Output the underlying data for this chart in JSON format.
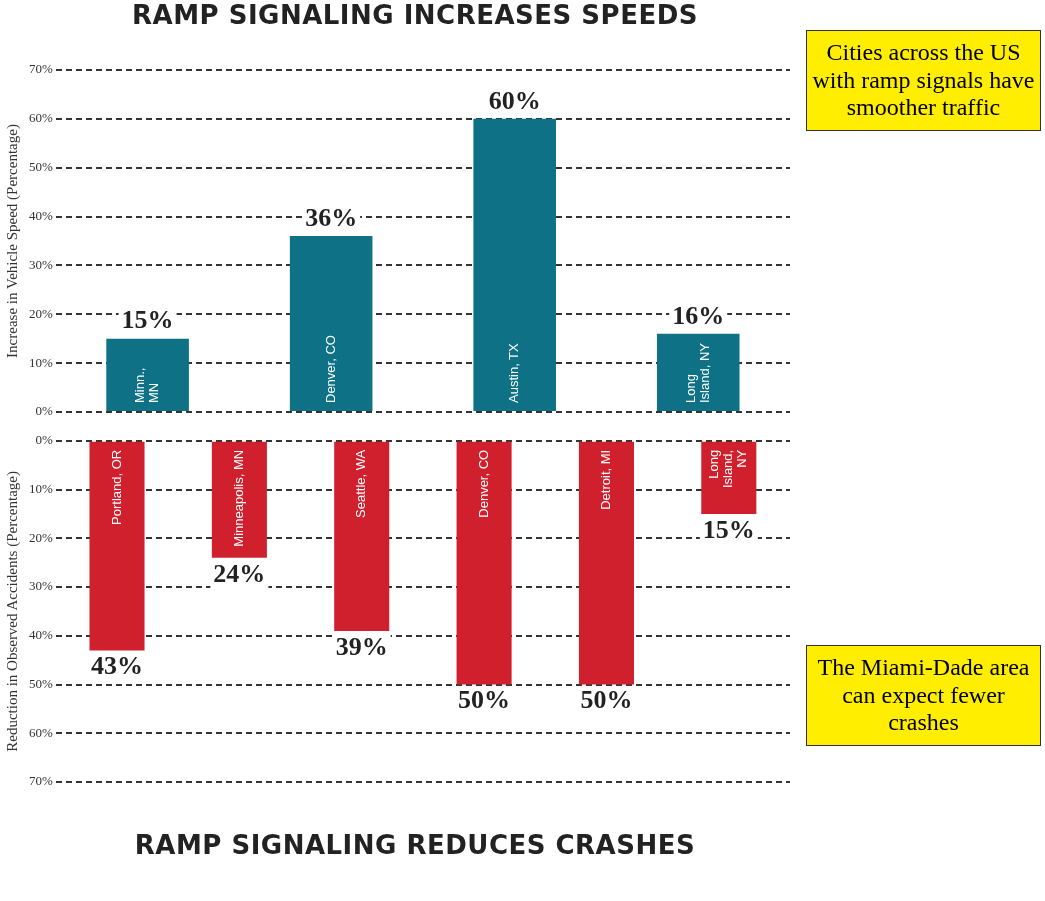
{
  "chart_data": [
    {
      "type": "bar",
      "title": "RAMP SIGNALING INCREASES SPEEDS",
      "ylabel": "Increase in Vehicle Speed (Percentage)",
      "categories": [
        "Minn., MN",
        "Denver, CO",
        "Austin, TX",
        "Long Island, NY"
      ],
      "values": [
        15,
        36,
        60,
        16
      ],
      "value_labels": [
        "15%",
        "36%",
        "60%",
        "16%"
      ],
      "color": "#0e7185",
      "ylim": [
        0,
        70
      ],
      "yticks": [
        {
          "value": 0,
          "label": "0%"
        },
        {
          "value": 10,
          "label": "10%"
        },
        {
          "value": 20,
          "label": "20%"
        },
        {
          "value": 30,
          "label": "30%"
        },
        {
          "value": 40,
          "label": "40%"
        },
        {
          "value": 50,
          "label": "50%"
        },
        {
          "value": 60,
          "label": "60%"
        },
        {
          "value": 70,
          "label": "70%"
        }
      ],
      "grid": "y",
      "annotations": [
        "Cities across the US with ramp signals have smoother traffic"
      ]
    },
    {
      "type": "bar",
      "title": "RAMP SIGNALING REDUCES CRASHES",
      "ylabel": "Reduction in Observed Accidents (Percentage)",
      "categories": [
        "Portland, OR",
        "Minneapolis, MN",
        "Seattle, WA",
        "Denver, CO",
        "Detroit, MI",
        "Long Island, NY"
      ],
      "values": [
        43,
        24,
        39,
        50,
        50,
        15
      ],
      "value_labels": [
        "43%",
        "24%",
        "39%",
        "50%",
        "50%",
        "15%"
      ],
      "color": "#d0202e",
      "ylim": [
        70,
        0
      ],
      "yticks": [
        {
          "value": 0,
          "label": "0%"
        },
        {
          "value": 10,
          "label": "10%"
        },
        {
          "value": 20,
          "label": "20%"
        },
        {
          "value": 30,
          "label": "30%"
        },
        {
          "value": 40,
          "label": "40%"
        },
        {
          "value": 50,
          "label": "50%"
        },
        {
          "value": 60,
          "label": "60%"
        },
        {
          "value": 70,
          "label": "70%"
        }
      ],
      "grid": "y",
      "annotations": [
        "The Miami-Dade area can expect fewer crashes"
      ]
    }
  ]
}
